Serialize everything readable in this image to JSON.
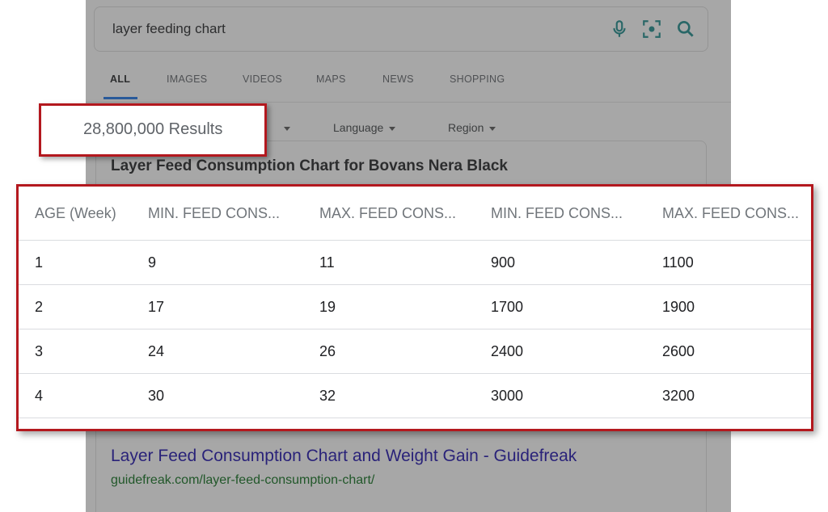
{
  "search": {
    "query": "layer feeding chart"
  },
  "tabs": [
    {
      "label": "ALL",
      "active": true
    },
    {
      "label": "IMAGES",
      "active": false
    },
    {
      "label": "VIDEOS",
      "active": false
    },
    {
      "label": "MAPS",
      "active": false
    },
    {
      "label": "NEWS",
      "active": false
    },
    {
      "label": "SHOPPING",
      "active": false
    }
  ],
  "filters": {
    "language": "Language",
    "region": "Region"
  },
  "results_count": "28,800,000 Results",
  "featured": {
    "title": "Layer Feed Consumption Chart for Bovans Nera Black",
    "table": {
      "headers": [
        "AGE (Week)",
        "MIN. FEED CONS...",
        "MAX. FEED CONS...",
        "MIN. FEED CONS...",
        "MAX. FEED CONS..."
      ],
      "rows": [
        [
          "1",
          "9",
          "11",
          "900",
          "1100"
        ],
        [
          "2",
          "17",
          "19",
          "1700",
          "1900"
        ],
        [
          "3",
          "24",
          "26",
          "2400",
          "2600"
        ],
        [
          "4",
          "30",
          "32",
          "3000",
          "3200"
        ]
      ]
    }
  },
  "result": {
    "title": "Layer Feed Consumption Chart and Weight Gain - Guidefreak",
    "url": "guidefreak.com/layer-feed-consumption-chart/"
  },
  "icons": {
    "mic": "microphone-icon",
    "lens": "camera-search-icon",
    "search": "search-icon"
  },
  "colors": {
    "accent": "#1a73e8",
    "highlight": "#b3181e",
    "link": "#1a0dab",
    "url": "#0b6e1b",
    "icon": "#1a8a8a"
  }
}
